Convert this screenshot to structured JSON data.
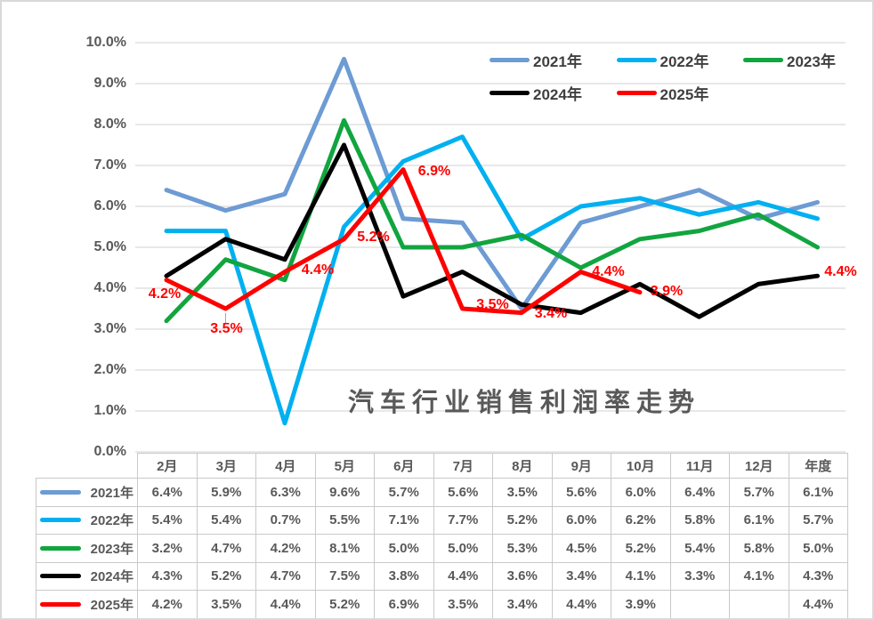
{
  "chart": {
    "title": "汽车行业销售利润率走势",
    "y_axis_ticks": [
      "10.0%",
      "9.0%",
      "8.0%",
      "7.0%",
      "6.0%",
      "5.0%",
      "4.0%",
      "3.0%",
      "2.0%",
      "1.0%",
      "0.0%"
    ],
    "grid_color": "#d9d9d9",
    "data_label_color": "#ff0000"
  },
  "chart_data": {
    "type": "line",
    "title": "汽车行业销售利润率走势",
    "categories": [
      "2月",
      "3月",
      "4月",
      "5月",
      "6月",
      "7月",
      "8月",
      "9月",
      "10月",
      "11月",
      "12月",
      "年度"
    ],
    "ylim": [
      0,
      10
    ],
    "y_tick_step": 1,
    "grid": true,
    "legend_position": "top-right",
    "series": [
      {
        "name": "2021年",
        "color": "#6d9bd3",
        "values": [
          6.4,
          5.9,
          6.3,
          9.6,
          5.7,
          5.6,
          3.5,
          5.6,
          6.0,
          6.4,
          5.7,
          6.1
        ]
      },
      {
        "name": "2022年",
        "color": "#00b0f0",
        "values": [
          5.4,
          5.4,
          0.7,
          5.5,
          7.1,
          7.7,
          5.2,
          6.0,
          6.2,
          5.8,
          6.1,
          5.7
        ]
      },
      {
        "name": "2023年",
        "color": "#11a53f",
        "values": [
          3.2,
          4.7,
          4.2,
          8.1,
          5.0,
          5.0,
          5.3,
          4.5,
          5.2,
          5.4,
          5.8,
          5.0
        ]
      },
      {
        "name": "2024年",
        "color": "#000000",
        "values": [
          4.3,
          5.2,
          4.7,
          7.5,
          3.8,
          4.4,
          3.6,
          3.4,
          4.1,
          3.3,
          4.1,
          4.3
        ]
      },
      {
        "name": "2025年",
        "color": "#ff0000",
        "values": [
          4.2,
          3.5,
          4.4,
          5.2,
          6.9,
          3.5,
          3.4,
          4.4,
          3.9,
          null,
          null,
          4.4
        ],
        "data_labels": [
          "4.2%",
          "3.5%",
          "4.4%",
          "5.2%",
          "6.9%",
          "3.5%",
          "3.4%",
          "4.4%",
          "3.9%",
          null,
          null,
          "4.4%"
        ]
      }
    ]
  },
  "table": {
    "columns": [
      "2月",
      "3月",
      "4月",
      "5月",
      "6月",
      "7月",
      "8月",
      "9月",
      "10月",
      "11月",
      "12月",
      "年度"
    ],
    "rows": [
      {
        "label": "2021年",
        "color": "#6d9bd3",
        "values": [
          "6.4%",
          "5.9%",
          "6.3%",
          "9.6%",
          "5.7%",
          "5.6%",
          "3.5%",
          "5.6%",
          "6.0%",
          "6.4%",
          "5.7%",
          "6.1%"
        ]
      },
      {
        "label": "2022年",
        "color": "#00b0f0",
        "values": [
          "5.4%",
          "5.4%",
          "0.7%",
          "5.5%",
          "7.1%",
          "7.7%",
          "5.2%",
          "6.0%",
          "6.2%",
          "5.8%",
          "6.1%",
          "5.7%"
        ]
      },
      {
        "label": "2023年",
        "color": "#11a53f",
        "values": [
          "3.2%",
          "4.7%",
          "4.2%",
          "8.1%",
          "5.0%",
          "5.0%",
          "5.3%",
          "4.5%",
          "5.2%",
          "5.4%",
          "5.8%",
          "5.0%"
        ]
      },
      {
        "label": "2024年",
        "color": "#000000",
        "values": [
          "4.3%",
          "5.2%",
          "4.7%",
          "7.5%",
          "3.8%",
          "4.4%",
          "3.6%",
          "3.4%",
          "4.1%",
          "3.3%",
          "4.1%",
          "4.3%"
        ]
      },
      {
        "label": "2025年",
        "color": "#ff0000",
        "values": [
          "4.2%",
          "3.5%",
          "4.4%",
          "5.2%",
          "6.9%",
          "3.5%",
          "3.4%",
          "4.4%",
          "3.9%",
          "",
          "",
          "4.4%"
        ]
      }
    ]
  }
}
